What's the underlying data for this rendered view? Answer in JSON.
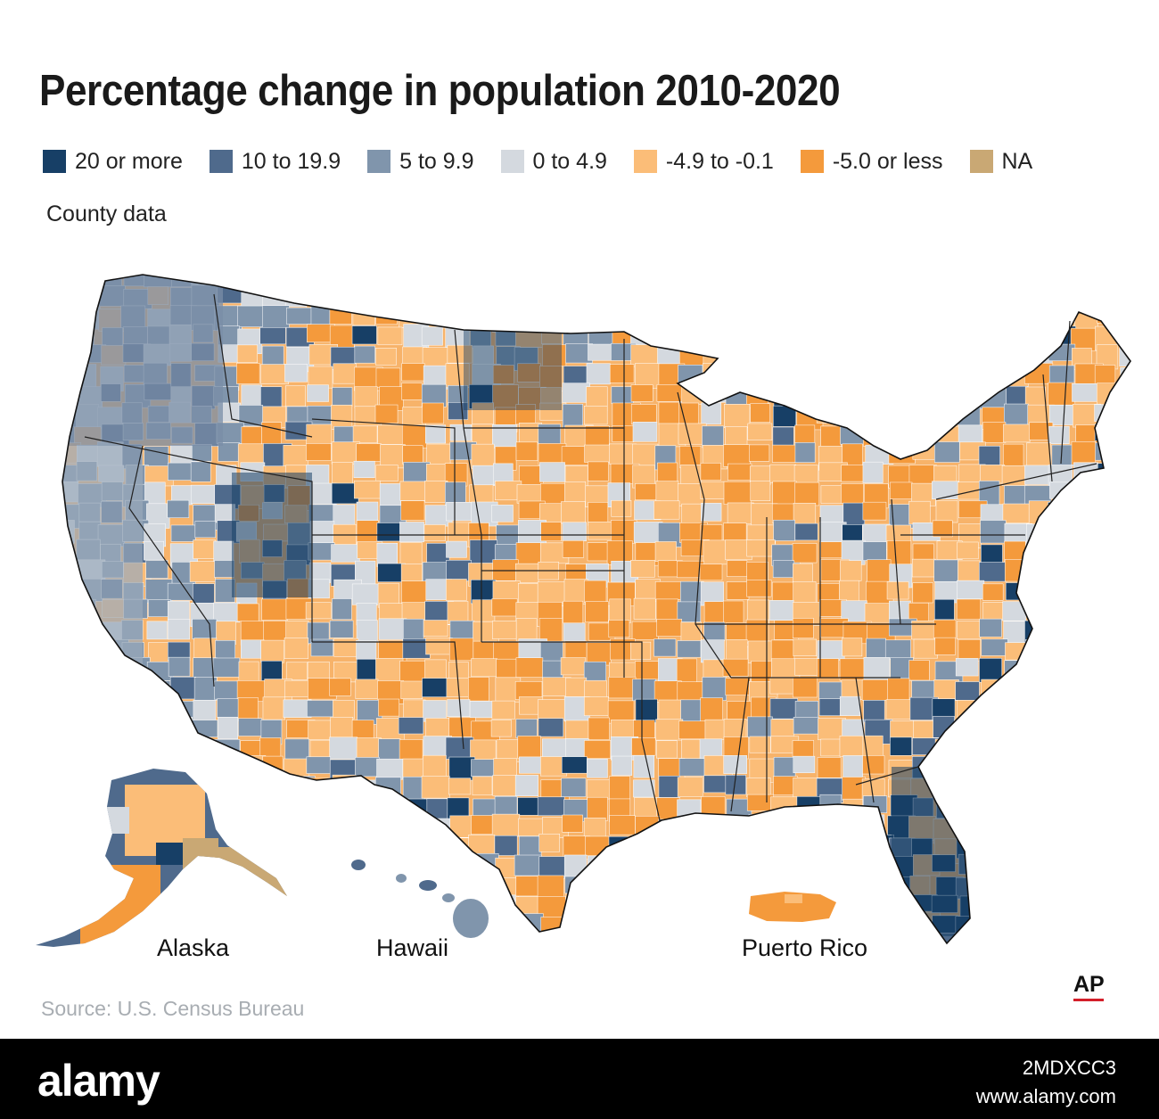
{
  "title": "Percentage change in population 2010-2020",
  "subtitle": "County data",
  "legend": [
    {
      "label": "20 or more",
      "color": "#173f66"
    },
    {
      "label": "10 to 19.9",
      "color": "#4f6a8c"
    },
    {
      "label": "5 to 9.9",
      "color": "#8095ac"
    },
    {
      "label": "0 to 4.9",
      "color": "#d4d9df"
    },
    {
      "label": "-4.9 to -0.1",
      "color": "#fbbd78"
    },
    {
      "label": "-5.0 or less",
      "color": "#f49a3c"
    },
    {
      "label": "NA",
      "color": "#c9a874"
    }
  ],
  "insets": {
    "alaska": "Alaska",
    "hawaii": "Hawaii",
    "puerto_rico": "Puerto Rico"
  },
  "source": "Source: U.S. Census Bureau",
  "credit": "AP",
  "footer": {
    "brand": "alamy",
    "image_id": "2MDXCC3",
    "url": "www.alamy.com"
  }
}
